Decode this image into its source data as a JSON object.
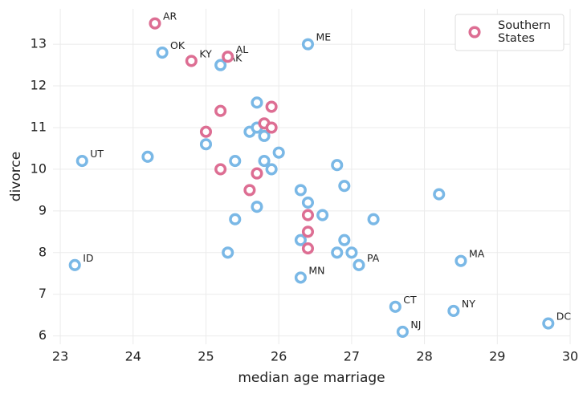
{
  "chart_data": {
    "type": "scatter",
    "x_label": "median age marriage",
    "y_label": "divorce",
    "xlim": [
      22.9,
      30.0
    ],
    "ylim": [
      5.8,
      13.85
    ],
    "xticks": [
      23,
      24,
      25,
      26,
      27,
      28,
      29,
      30
    ],
    "yticks": [
      6,
      7,
      8,
      9,
      10,
      11,
      12,
      13
    ],
    "grid": true,
    "legend_position": "upper-right",
    "series": [
      {
        "color": "#7ab8e6",
        "x": [
          24.4,
          25.2,
          26.4,
          25.7,
          25.6,
          25.7,
          25.8,
          23.3,
          24.2,
          25.0,
          25.4,
          25.8,
          26.0,
          25.9,
          26.8,
          26.9,
          26.3,
          26.4,
          25.7,
          26.6,
          27.3,
          28.2,
          25.4,
          26.3,
          26.9,
          26.8,
          27.0,
          27.1,
          25.3,
          23.2,
          26.3,
          28.5,
          27.6,
          28.4,
          27.7,
          29.7
        ],
        "values": [
          12.8,
          12.5,
          13.0,
          11.6,
          10.9,
          11.0,
          10.8,
          10.2,
          10.3,
          10.6,
          10.2,
          10.2,
          10.4,
          10.0,
          10.1,
          9.6,
          9.5,
          9.2,
          9.1,
          8.9,
          8.8,
          9.4,
          8.8,
          8.3,
          8.3,
          8.0,
          8.0,
          7.7,
          8.0,
          7.7,
          7.4,
          7.8,
          6.7,
          6.6,
          6.1,
          6.3
        ],
        "labels": [
          "OK",
          "AK",
          "ME",
          null,
          null,
          null,
          null,
          "UT",
          null,
          null,
          null,
          null,
          null,
          null,
          null,
          null,
          null,
          null,
          null,
          null,
          null,
          null,
          null,
          null,
          null,
          null,
          null,
          "PA",
          null,
          "ID",
          "MN",
          "MA",
          "CT",
          "NY",
          "NJ",
          "DC"
        ]
      },
      {
        "name": "Southern\nStates",
        "color": "#dd6e93",
        "x": [
          24.3,
          24.8,
          25.3,
          25.2,
          25.9,
          25.0,
          25.8,
          25.9,
          25.2,
          25.7,
          25.6,
          26.4,
          26.4,
          26.4
        ],
        "values": [
          13.5,
          12.6,
          12.7,
          11.4,
          11.5,
          10.9,
          11.1,
          11.0,
          10.0,
          9.9,
          9.5,
          8.9,
          8.5,
          8.1
        ],
        "labels": [
          "AR",
          "KY",
          "AL",
          null,
          null,
          null,
          null,
          null,
          null,
          null,
          null,
          null,
          null,
          null
        ]
      }
    ]
  }
}
